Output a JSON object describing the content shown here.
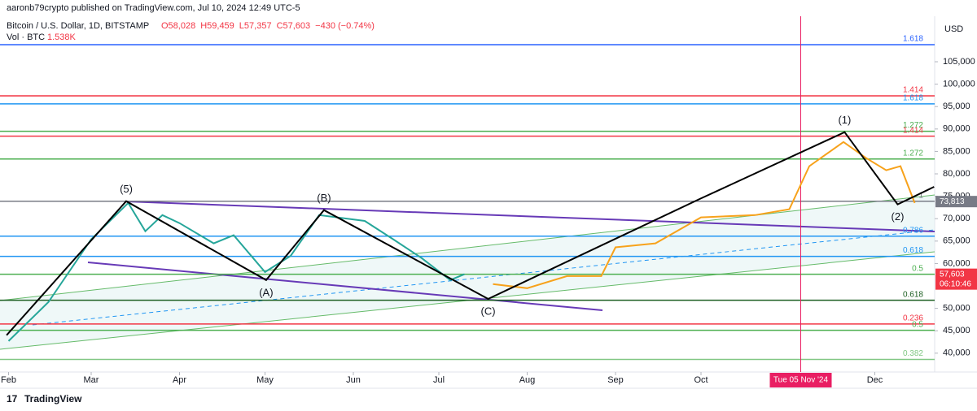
{
  "byline": "aaronb79crypto published on TradingView.com, Jul 10, 2024 12:49 UTC-5",
  "brand": "TradingView",
  "chart_data": {
    "type": "line",
    "title": "Bitcoin / U.S. Dollar, 1D, BITSTAMP",
    "ohlc": [
      "O58,028",
      "H59,459",
      "L57,357",
      "C57,603",
      "−430 (−0.74%)"
    ],
    "volume_label": "Vol · BTC",
    "volume_value": "1.538K",
    "currency": "USD",
    "xlim": [
      28,
      356
    ],
    "xticks": [
      {
        "value": 31,
        "label": "Feb"
      },
      {
        "value": 60,
        "label": "Mar"
      },
      {
        "value": 91,
        "label": "Apr"
      },
      {
        "value": 121,
        "label": "May"
      },
      {
        "value": 152,
        "label": "Jun"
      },
      {
        "value": 182,
        "label": "Jul"
      },
      {
        "value": 213,
        "label": "Aug"
      },
      {
        "value": 244,
        "label": "Sep"
      },
      {
        "value": 274,
        "label": "Oct"
      },
      {
        "value": 335,
        "label": "Dec"
      }
    ],
    "ylim": [
      35800,
      113700
    ],
    "yticks": [
      {
        "value": 105000,
        "label": "105,000"
      },
      {
        "value": 100000,
        "label": "100,000"
      },
      {
        "value": 95000,
        "label": "95,000"
      },
      {
        "value": 90000,
        "label": "90,000"
      },
      {
        "value": 85000,
        "label": "85,000"
      },
      {
        "value": 80000,
        "label": "80,000"
      },
      {
        "value": 75000,
        "label": "75,000"
      },
      {
        "value": 70000,
        "label": "70,000"
      },
      {
        "value": 65000,
        "label": "65,000"
      },
      {
        "value": 60000,
        "label": "60,000"
      },
      {
        "value": 50000,
        "label": "50,000"
      },
      {
        "value": 45000,
        "label": "45,000"
      },
      {
        "value": 40000,
        "label": "40,000"
      }
    ],
    "series": [
      {
        "color": "#26a69a",
        "x": [
          31,
          45,
          60,
          73,
          79,
          85,
          91,
          103,
          110,
          121,
          130,
          140,
          156,
          166,
          176,
          186,
          191
        ],
        "values": [
          42700,
          51400,
          65400,
          73500,
          67200,
          70800,
          69000,
          64500,
          66300,
          58100,
          61700,
          70800,
          69500,
          65400,
          61200,
          56300,
          57603
        ]
      },
      {
        "color": "#f7a21b",
        "x": [
          201,
          213,
          227,
          239,
          244,
          258,
          274,
          293,
          305,
          312,
          324,
          332,
          339,
          344,
          349
        ],
        "values": [
          55400,
          54500,
          57200,
          57200,
          63600,
          64500,
          70300,
          70800,
          72100,
          81700,
          87100,
          83500,
          80800,
          81700,
          73500
        ]
      },
      {
        "color": "#000000",
        "x": [
          30.3,
          72.3,
          121.4,
          141.7,
          199.3,
          273.6,
          324.4,
          343,
          355.8
        ],
        "values": [
          44000,
          73900,
          56300,
          71900,
          52100,
          74400,
          89300,
          73200,
          77100
        ],
        "point_labels": [
          null,
          "(5)",
          "(A)",
          "(B)",
          "(C)",
          null,
          "(1)",
          "(2)",
          null
        ]
      }
    ],
    "levels": [
      {
        "label": "1.618",
        "value": 108800,
        "color": "#2962ff"
      },
      {
        "label": "1.414",
        "value": 97400,
        "color": "#f23645"
      },
      {
        "label": "1.618",
        "value": 95600,
        "color": "#2196f3"
      },
      {
        "label": "1.272",
        "value": 89500,
        "color": "#4caf50"
      },
      {
        "label": "1.414",
        "value": 88400,
        "color": "#f23645"
      },
      {
        "label": "1.272",
        "value": 83300,
        "color": "#4caf50"
      },
      {
        "label": "1",
        "value": 73900,
        "color": "#787b86"
      },
      {
        "label": "0.786",
        "value": 66100,
        "color": "#2196f3"
      },
      {
        "label": "0.618",
        "value": 61600,
        "color": "#2196f3"
      },
      {
        "label": "0.5",
        "value": 57600,
        "color": "#4caf50"
      },
      {
        "label": "0.618",
        "value": 51800,
        "color": "#1b5e20"
      },
      {
        "label": "0.236",
        "value": 46500,
        "color": "#f23645"
      },
      {
        "label": "0.5",
        "value": 45100,
        "color": "#4caf50"
      },
      {
        "label": "0.382",
        "value": 38600,
        "color": "#81c784"
      }
    ],
    "crosshair": {
      "x": 309,
      "label": "Tue 05 Nov '24"
    },
    "price_markers": [
      {
        "value": 57603,
        "label": "57,603",
        "sub": "06:10:46",
        "color": "#f23645"
      },
      {
        "value": 73813,
        "label": "73,813",
        "color": "#787b86"
      }
    ]
  }
}
